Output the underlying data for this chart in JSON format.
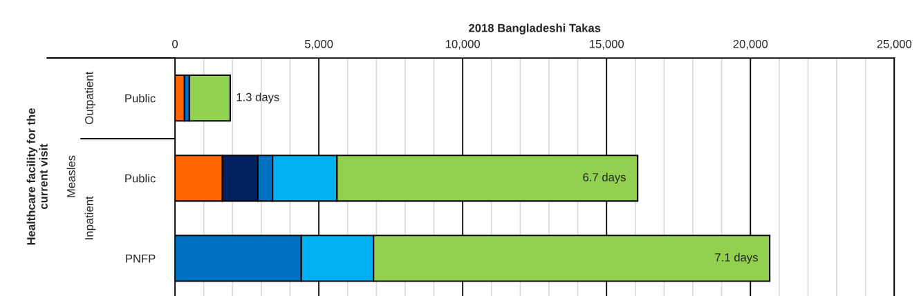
{
  "chart_data": {
    "type": "bar",
    "orientation": "horizontal",
    "stacked": true,
    "xlabel": "2018 Bangladeshi Takas",
    "categories": [
      "Public",
      "Public",
      "PNFP"
    ],
    "series": [
      {
        "color": "#ff6600",
        "values": [
          330,
          1650,
          null
        ]
      },
      {
        "color": "#002060",
        "values": [
          null,
          1230,
          null
        ]
      },
      {
        "color": "#0070c0",
        "values": [
          170,
          510,
          4390
        ]
      },
      {
        "color": "#00b0f0",
        "values": [
          null,
          2240,
          2510
        ]
      },
      {
        "color": "#92d050",
        "values": [
          1420,
          10450,
          13770
        ]
      }
    ],
    "xlim": [
      0,
      25000
    ],
    "xticks": [
      0,
      {
        "value": 5000,
        "label": "5,000"
      },
      {
        "value": 10000,
        "label": "10,000"
      },
      {
        "value": 15000,
        "label": "15,000"
      },
      {
        "value": 20000,
        "label": "20,000"
      },
      {
        "value": 25000,
        "label": "25,000"
      }
    ],
    "grid": "x",
    "annotations": [
      "1.3 days",
      "6.7 days",
      "7.1 days",
      "Outpatient",
      "Inpatient",
      "Measles",
      "Healthcare facility for the\ncurrent visit"
    ]
  }
}
